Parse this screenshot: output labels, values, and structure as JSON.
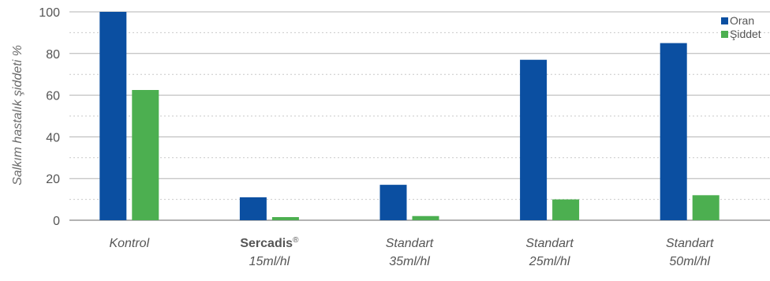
{
  "chart_data": {
    "type": "bar",
    "title": "",
    "xlabel": "",
    "ylabel": "Salkım hastalık şiddeti %",
    "ylim": [
      0,
      100
    ],
    "yticks": [
      0,
      20,
      40,
      60,
      80,
      100
    ],
    "grid": "horizontal (dashed minor lines between ticks)",
    "legend_position": "top-right",
    "categories": [
      {
        "line1": "Kontrol",
        "line1_bold": false,
        "line1_sup": "",
        "line2": ""
      },
      {
        "line1": "Sercadis",
        "line1_bold": true,
        "line1_sup": "®",
        "line2": "15ml/hl"
      },
      {
        "line1": "Standart",
        "line1_bold": false,
        "line1_sup": "",
        "line2": "35ml/hl"
      },
      {
        "line1": "Standart",
        "line1_bold": false,
        "line1_sup": "",
        "line2": "25ml/hl"
      },
      {
        "line1": "Standart",
        "line1_bold": false,
        "line1_sup": "",
        "line2": "50ml/hl"
      }
    ],
    "series": [
      {
        "name": "Oran",
        "color": "#0b4fa1",
        "values": [
          100,
          11,
          17,
          77,
          85
        ]
      },
      {
        "name": "Şiddet",
        "color": "#4caf50",
        "values": [
          62.5,
          1.5,
          2,
          10,
          12
        ]
      }
    ]
  }
}
